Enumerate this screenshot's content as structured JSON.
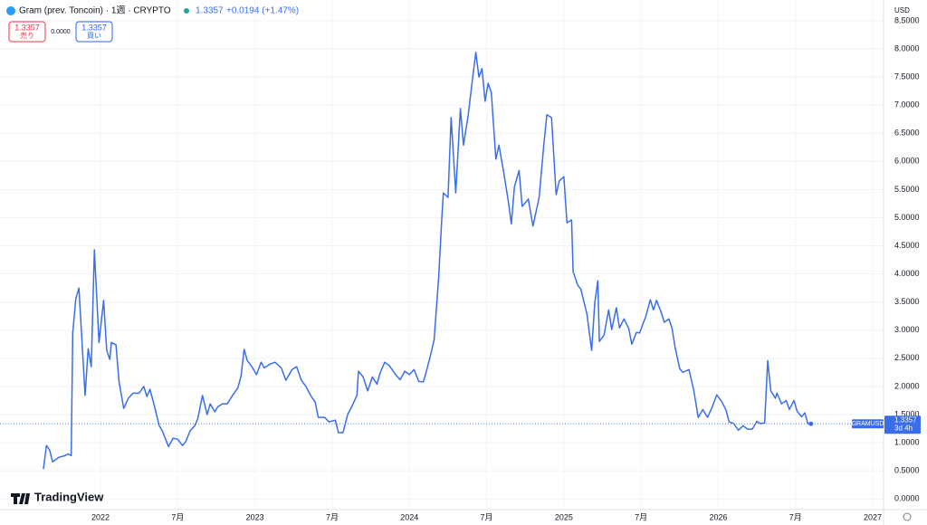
{
  "chart_data": {
    "type": "line",
    "title": "Gram (prev. Toncoin) · 1週 · CRYPTO",
    "symbol": "GRAMUSD",
    "countdown": "3d 4h",
    "currency": "USD",
    "x": [
      2021.63,
      2021.65,
      2021.67,
      2021.69,
      2021.73,
      2021.77,
      2021.79,
      2021.81,
      2021.82,
      2021.84,
      2021.86,
      2021.9,
      2021.92,
      2021.94,
      2021.96,
      2021.99,
      2022.02,
      2022.04,
      2022.06,
      2022.07,
      2022.1,
      2022.12,
      2022.15,
      2022.18,
      2022.21,
      2022.25,
      2022.28,
      2022.3,
      2022.32,
      2022.35,
      2022.38,
      2022.4,
      2022.44,
      2022.47,
      2022.5,
      2022.53,
      2022.55,
      2022.58,
      2022.61,
      2022.63,
      2022.66,
      2022.69,
      2022.71,
      2022.74,
      2022.76,
      2022.79,
      2022.82,
      2022.85,
      2022.89,
      2022.91,
      2022.93,
      2022.95,
      2022.98,
      2023.01,
      2023.04,
      2023.06,
      2023.1,
      2023.13,
      2023.17,
      2023.2,
      2023.24,
      2023.27,
      2023.3,
      2023.33,
      2023.36,
      2023.39,
      2023.41,
      2023.45,
      2023.48,
      2023.52,
      2023.54,
      2023.57,
      2023.6,
      2023.63,
      2023.66,
      2023.67,
      2023.7,
      2023.73,
      2023.76,
      2023.79,
      2023.81,
      2023.84,
      2023.87,
      2023.91,
      2023.94,
      2023.97,
      2024.0,
      2024.03,
      2024.06,
      2024.09,
      2024.11,
      2024.14,
      2024.16,
      2024.19,
      2024.21,
      2024.22,
      2024.25,
      2024.27,
      2024.3,
      2024.33,
      2024.35,
      2024.38,
      2024.41,
      2024.43,
      2024.45,
      2024.47,
      2024.49,
      2024.51,
      2024.53,
      2024.56,
      2024.58,
      2024.61,
      2024.64,
      2024.66,
      2024.68,
      2024.71,
      2024.73,
      2024.77,
      2024.8,
      2024.84,
      2024.87,
      2024.89,
      2024.92,
      2024.95,
      2024.97,
      2025.0,
      2025.02,
      2025.05,
      2025.06,
      2025.09,
      2025.11,
      2025.15,
      2025.18,
      2025.2,
      2025.22,
      2025.23,
      2025.26,
      2025.29,
      2025.31,
      2025.34,
      2025.36,
      2025.39,
      2025.42,
      2025.44,
      2025.47,
      2025.49,
      2025.53,
      2025.56,
      2025.58,
      2025.6,
      2025.63,
      2025.65,
      2025.68,
      2025.7,
      2025.72,
      2025.75,
      2025.77,
      2025.81,
      2025.84,
      2025.87,
      2025.9,
      2025.93,
      2025.96,
      2025.99,
      2026.02,
      2026.05,
      2026.07,
      2026.1,
      2026.13,
      2026.16,
      2026.19,
      2026.22,
      2026.25,
      2026.27,
      2026.3,
      2026.32,
      2026.34,
      2026.37,
      2026.38,
      2026.41,
      2026.44,
      2026.46,
      2026.49,
      2026.51,
      2026.54,
      2026.56,
      2026.58,
      2026.6
    ],
    "series": [
      {
        "name": "GRAMUSD",
        "color": "#3a6ee8",
        "values": [
          0.53,
          0.95,
          0.87,
          0.66,
          0.74,
          0.77,
          0.8,
          0.77,
          2.95,
          3.56,
          3.75,
          1.84,
          2.67,
          2.35,
          4.43,
          2.78,
          3.53,
          2.64,
          2.48,
          2.78,
          2.74,
          2.08,
          1.61,
          1.79,
          1.88,
          1.88,
          2.0,
          1.82,
          1.95,
          1.64,
          1.3,
          1.21,
          0.93,
          1.08,
          1.06,
          0.95,
          1.01,
          1.21,
          1.3,
          1.43,
          1.84,
          1.5,
          1.69,
          1.55,
          1.64,
          1.69,
          1.69,
          1.82,
          1.98,
          2.19,
          2.66,
          2.46,
          2.35,
          2.21,
          2.43,
          2.33,
          2.4,
          2.43,
          2.33,
          2.11,
          2.3,
          2.35,
          2.11,
          2.0,
          1.84,
          1.72,
          1.45,
          1.45,
          1.37,
          1.4,
          1.18,
          1.18,
          1.5,
          1.66,
          1.84,
          2.27,
          2.17,
          1.92,
          2.17,
          2.04,
          2.24,
          2.43,
          2.37,
          2.21,
          2.12,
          2.27,
          2.21,
          2.3,
          2.09,
          2.08,
          2.27,
          2.59,
          2.83,
          3.96,
          5.01,
          5.44,
          5.36,
          6.78,
          5.44,
          6.94,
          6.29,
          6.81,
          7.5,
          7.94,
          7.5,
          7.65,
          7.07,
          7.39,
          7.23,
          6.04,
          6.29,
          5.81,
          5.3,
          4.89,
          5.55,
          5.84,
          5.2,
          5.33,
          4.85,
          5.36,
          6.29,
          6.83,
          6.78,
          5.41,
          5.65,
          5.73,
          4.91,
          4.96,
          4.04,
          3.8,
          3.73,
          3.28,
          2.64,
          3.48,
          3.88,
          2.8,
          2.91,
          3.36,
          3.01,
          3.4,
          3.04,
          3.2,
          3.03,
          2.75,
          2.96,
          2.95,
          3.24,
          3.54,
          3.36,
          3.53,
          3.32,
          3.14,
          3.2,
          3.04,
          2.7,
          2.32,
          2.25,
          2.3,
          1.95,
          1.45,
          1.59,
          1.45,
          1.63,
          1.85,
          1.74,
          1.58,
          1.37,
          1.34,
          1.22,
          1.3,
          1.24,
          1.24,
          1.38,
          1.34,
          1.35,
          2.46,
          1.92,
          1.79,
          1.88,
          1.69,
          1.75,
          1.59,
          1.75,
          1.56,
          1.46,
          1.53,
          1.34,
          1.3357
        ]
      }
    ],
    "xlim": [
      2021.349,
      2027.07
    ],
    "xticks": [
      2022,
      {
        "value": 2022.5,
        "label": "7月"
      },
      2023,
      {
        "value": 2023.5,
        "label": "7月"
      },
      2024,
      {
        "value": 2024.5,
        "label": "7月"
      },
      2025,
      {
        "value": 2025.5,
        "label": "7月"
      },
      2026,
      {
        "value": 2026.5,
        "label": "7月"
      },
      2027
    ],
    "ylim": [
      -0.19,
      8.87
    ],
    "yticks": [
      {
        "value": 0,
        "label": "0.0000"
      },
      {
        "value": 0.5,
        "label": "0.5000"
      },
      {
        "value": 1,
        "label": "1.0000"
      },
      {
        "value": 1.5,
        "label": "1.5000"
      },
      {
        "value": 2,
        "label": "2.0000"
      },
      {
        "value": 2.5,
        "label": "2.5000"
      },
      {
        "value": 3,
        "label": "3.0000"
      },
      {
        "value": 3.5,
        "label": "3.5000"
      },
      {
        "value": 4,
        "label": "4.0000"
      },
      {
        "value": 4.5,
        "label": "4.5000"
      },
      {
        "value": 5,
        "label": "5.0000"
      },
      {
        "value": 5.5,
        "label": "5.5000"
      },
      {
        "value": 6,
        "label": "6.0000"
      },
      {
        "value": 6.5,
        "label": "6.5000"
      },
      {
        "value": 7,
        "label": "7.0000"
      },
      {
        "value": 7.5,
        "label": "7.5000"
      },
      {
        "value": 8,
        "label": "8.0000"
      },
      {
        "value": 8.5,
        "label": "8.5000"
      }
    ],
    "grid": true
  },
  "header": {
    "price": "1.3357",
    "change": "+0.0194 (+1.47%)",
    "sell_price": "1.3357",
    "sell_label": "売り",
    "spread": "0.0000",
    "buy_price": "1.3357",
    "buy_label": "買い",
    "brand": "TradingView"
  }
}
